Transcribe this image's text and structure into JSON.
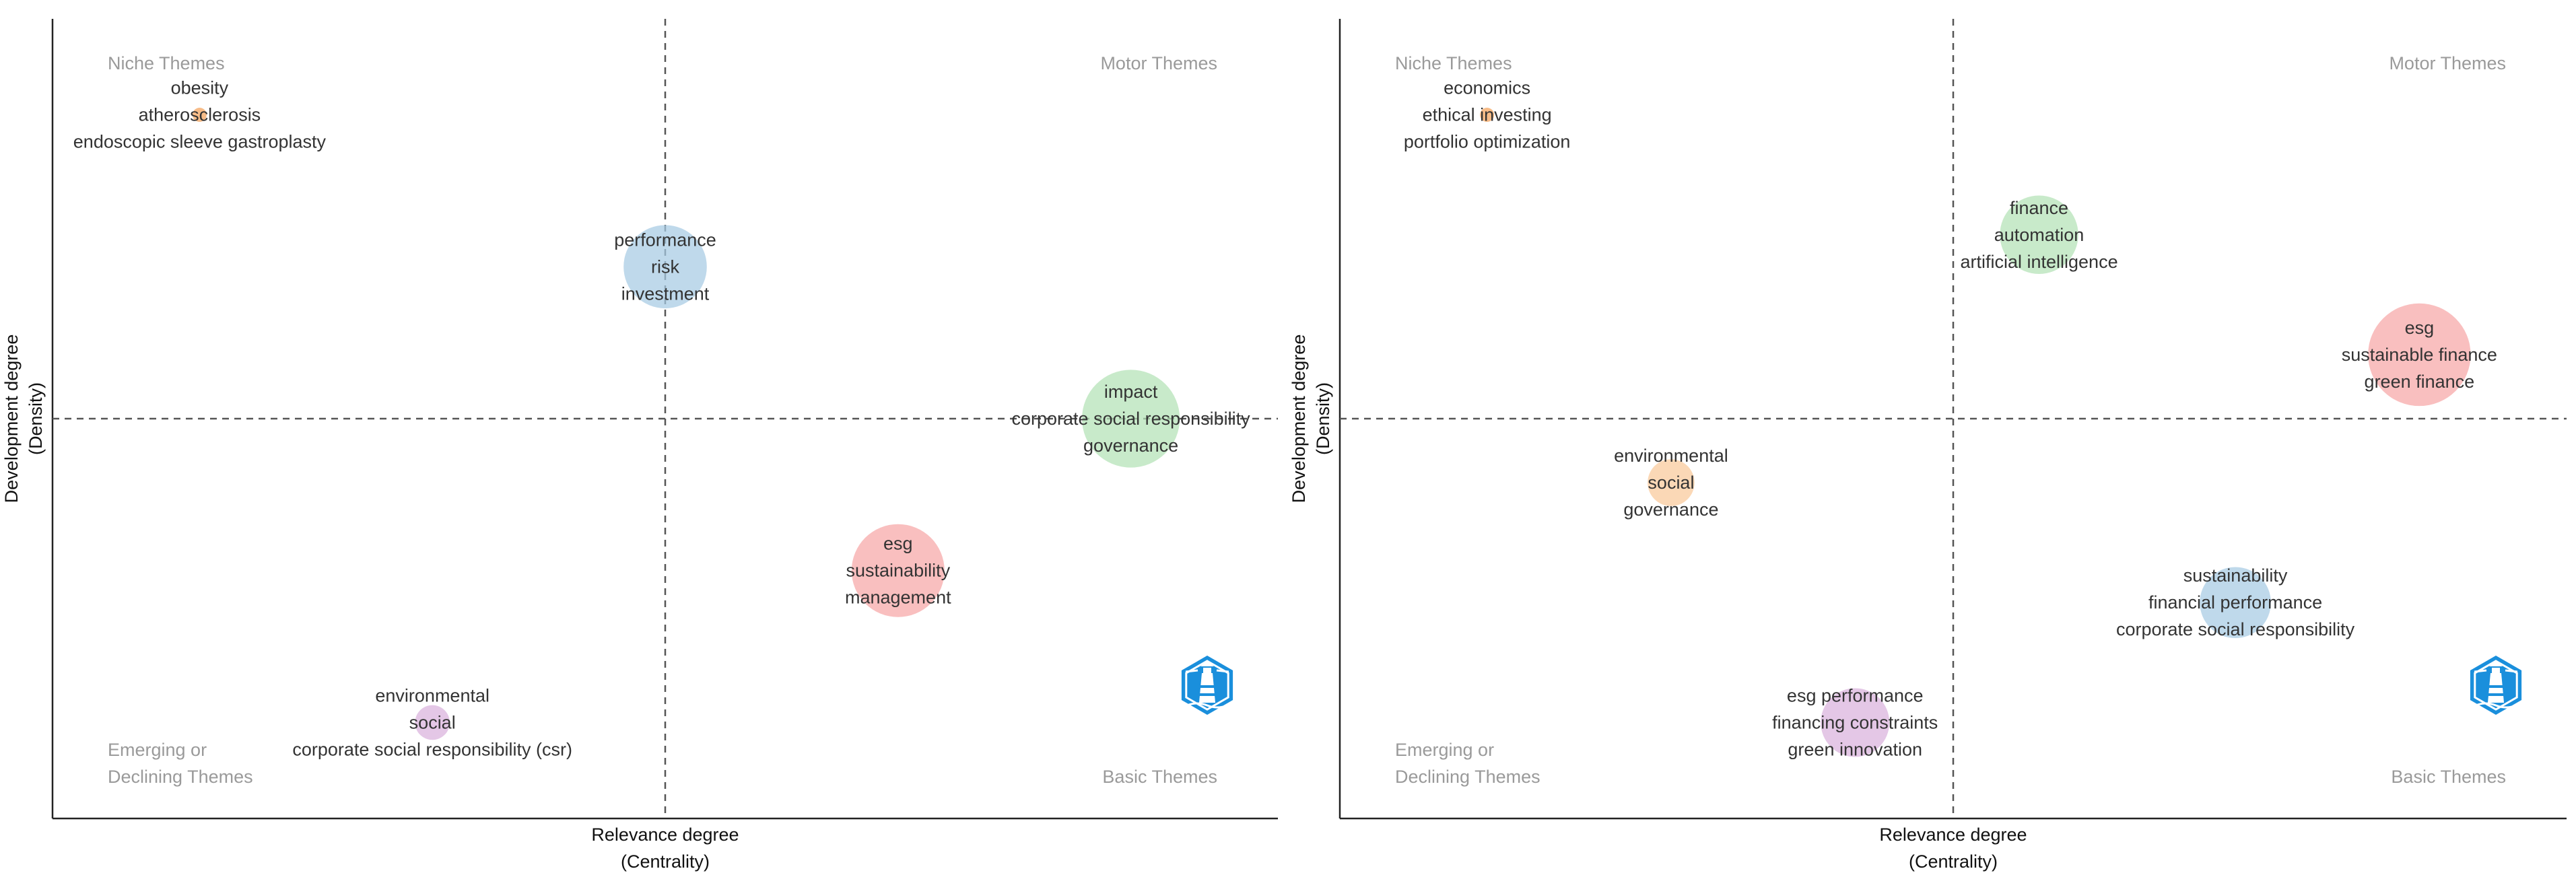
{
  "chart_data": [
    {
      "type": "scatter",
      "xlabel": [
        "Relevance degree",
        "(Centrality)"
      ],
      "ylabel": [
        "Development degree",
        "(Density)"
      ],
      "xlim": [
        0,
        1
      ],
      "ylim": [
        0,
        1
      ],
      "reference_lines": {
        "x": 0.5,
        "y": 0.5
      },
      "grid": false,
      "quadrants": {
        "niche": [
          "Niche Themes"
        ],
        "motor": [
          "Motor Themes"
        ],
        "emerging": [
          "Emerging or",
          "Declining Themes"
        ],
        "basic": [
          "Basic Themes"
        ]
      },
      "clusters": [
        {
          "labels": [
            "obesity",
            "atherosclerosis",
            "endoscopic sleeve gastroplasty"
          ],
          "x": 0.12,
          "y": 0.88,
          "size": 0.05,
          "color": "#f4a25a"
        },
        {
          "labels": [
            "performance",
            "risk",
            "investment"
          ],
          "x": 0.5,
          "y": 0.69,
          "size": 0.62,
          "color": "#a6cbe3"
        },
        {
          "labels": [
            "impact",
            "corporate social responsibility",
            "governance"
          ],
          "x": 0.88,
          "y": 0.5,
          "size": 0.74,
          "color": "#b3e2b5"
        },
        {
          "labels": [
            "esg",
            "sustainability",
            "management"
          ],
          "x": 0.69,
          "y": 0.31,
          "size": 0.7,
          "color": "#f7a6a6"
        },
        {
          "labels": [
            "environmental",
            "social",
            "corporate social responsibility (csr)"
          ],
          "x": 0.31,
          "y": 0.12,
          "size": 0.22,
          "color": "#d9b2dd"
        }
      ]
    },
    {
      "type": "scatter",
      "xlabel": [
        "Relevance degree",
        "(Centrality)"
      ],
      "ylabel": [
        "Development degree",
        "(Density)"
      ],
      "xlim": [
        0,
        1
      ],
      "ylim": [
        0,
        1
      ],
      "reference_lines": {
        "x": 0.5,
        "y": 0.5
      },
      "grid": false,
      "quadrants": {
        "niche": [
          "Niche Themes"
        ],
        "motor": [
          "Motor Themes"
        ],
        "emerging": [
          "Emerging or",
          "Declining Themes"
        ],
        "basic": [
          "Basic Themes"
        ]
      },
      "clusters": [
        {
          "labels": [
            "economics",
            "ethical investing",
            "portfolio optimization"
          ],
          "x": 0.12,
          "y": 0.88,
          "size": 0.05,
          "color": "#f4a25a"
        },
        {
          "labels": [
            "finance",
            "automation",
            "artificial intelligence"
          ],
          "x": 0.57,
          "y": 0.73,
          "size": 0.58,
          "color": "#b3e2b5"
        },
        {
          "labels": [
            "esg",
            "sustainable finance",
            "green finance"
          ],
          "x": 0.88,
          "y": 0.58,
          "size": 0.78,
          "color": "#f7a6a6"
        },
        {
          "labels": [
            "environmental",
            "social",
            "governance"
          ],
          "x": 0.27,
          "y": 0.42,
          "size": 0.32,
          "color": "#f9c99a"
        },
        {
          "labels": [
            "sustainability",
            "financial performance",
            "corporate social responsibility"
          ],
          "x": 0.73,
          "y": 0.27,
          "size": 0.52,
          "color": "#a6cbe3"
        },
        {
          "labels": [
            "esg performance",
            "financing constraints",
            "green innovation"
          ],
          "x": 0.42,
          "y": 0.12,
          "size": 0.5,
          "color": "#d9b2dd"
        }
      ]
    }
  ],
  "logo": {
    "icon": "lighthouse-icon",
    "color": "#1a8fdc"
  }
}
